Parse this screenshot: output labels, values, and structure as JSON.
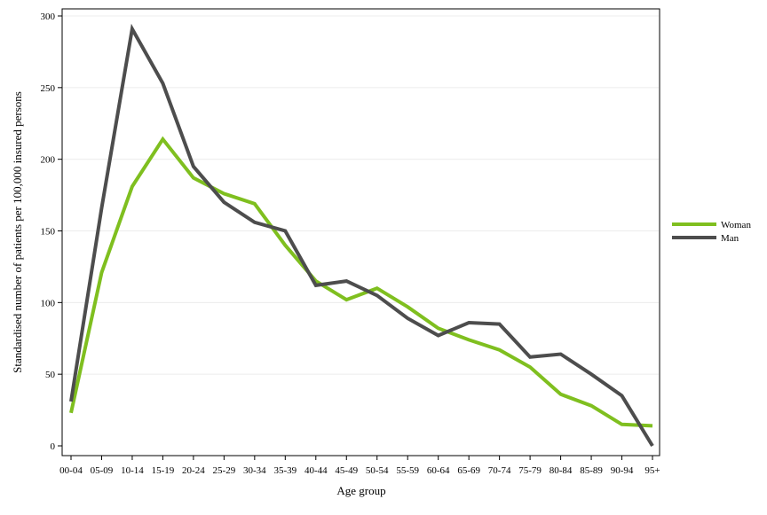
{
  "chart_data": {
    "type": "line",
    "xlabel": "Age group",
    "ylabel": "Standardised number of patients per 100,000 insured persons",
    "ylim": [
      0,
      300
    ],
    "yticks": [
      0,
      50,
      100,
      150,
      200,
      250,
      300
    ],
    "grid": "horizontal",
    "legend_position": "right",
    "categories": [
      "00-04",
      "05-09",
      "10-14",
      "15-19",
      "20-24",
      "25-29",
      "30-34",
      "35-39",
      "40-44",
      "45-49",
      "50-54",
      "55-59",
      "60-64",
      "65-69",
      "70-74",
      "75-79",
      "80-84",
      "85-89",
      "90-94",
      "95+"
    ],
    "series": [
      {
        "name": "Woman",
        "color": "#7fbf1f",
        "values": [
          23,
          121,
          181,
          214,
          187,
          176,
          169,
          140,
          115,
          102,
          110,
          97,
          82,
          74,
          67,
          55,
          36,
          28,
          15,
          14
        ]
      },
      {
        "name": "Man",
        "color": "#4d4d4d",
        "values": [
          31,
          166,
          291,
          253,
          195,
          170,
          156,
          150,
          112,
          115,
          105,
          89,
          77,
          86,
          85,
          62,
          64,
          50,
          35,
          0
        ]
      }
    ]
  }
}
